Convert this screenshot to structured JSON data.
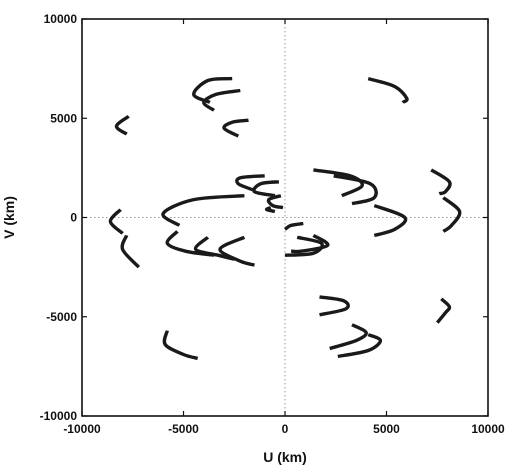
{
  "chart_data": {
    "type": "scatter",
    "title": "",
    "xlabel": "U (km)",
    "ylabel": "V (km)",
    "xlim": [
      -10000,
      10000
    ],
    "ylim": [
      -10000,
      10000
    ],
    "xticks": [
      "-10000",
      "-5000",
      "0",
      "5000",
      "10000"
    ],
    "yticks": [
      "-10000",
      "-5000",
      "0",
      "5000",
      "10000"
    ],
    "zero_lines": true,
    "grid": false,
    "tracks": [
      {
        "points": [
          [
            -2600,
            7000
          ],
          [
            -3800,
            6900
          ],
          [
            -4500,
            6200
          ],
          [
            -3700,
            5800
          ]
        ]
      },
      {
        "points": [
          [
            -2200,
            6400
          ],
          [
            -3400,
            6200
          ],
          [
            -4000,
            5800
          ],
          [
            -3500,
            5400
          ]
        ]
      },
      {
        "points": [
          [
            -1800,
            4900
          ],
          [
            -2600,
            4800
          ],
          [
            -3000,
            4500
          ],
          [
            -2300,
            4100
          ]
        ]
      },
      {
        "points": [
          [
            -7700,
            5100
          ],
          [
            -8300,
            4600
          ],
          [
            -7800,
            4200
          ]
        ]
      },
      {
        "points": [
          [
            4100,
            7000
          ],
          [
            5400,
            6600
          ],
          [
            6000,
            6000
          ],
          [
            5800,
            5800
          ]
        ]
      },
      {
        "points": [
          [
            -1000,
            2100
          ],
          [
            -2200,
            2000
          ],
          [
            -2300,
            1700
          ],
          [
            -1600,
            1400
          ]
        ]
      },
      {
        "points": [
          [
            -300,
            1800
          ],
          [
            -1200,
            1700
          ],
          [
            -1500,
            1300
          ],
          [
            -500,
            1100
          ]
        ]
      },
      {
        "points": [
          [
            -200,
            1100
          ],
          [
            -800,
            900
          ],
          [
            -600,
            600
          ],
          [
            -100,
            500
          ]
        ]
      },
      {
        "points": [
          [
            -700,
            500
          ],
          [
            -900,
            400
          ],
          [
            -500,
            300
          ]
        ]
      },
      {
        "points": [
          [
            1400,
            2400
          ],
          [
            3200,
            2100
          ],
          [
            3800,
            1600
          ],
          [
            2800,
            1100
          ]
        ]
      },
      {
        "points": [
          [
            2400,
            2100
          ],
          [
            4200,
            1700
          ],
          [
            4400,
            1000
          ],
          [
            3300,
            700
          ]
        ]
      },
      {
        "points": [
          [
            -2000,
            1100
          ],
          [
            -4500,
            900
          ],
          [
            -6000,
            200
          ],
          [
            -5200,
            -400
          ]
        ]
      },
      {
        "points": [
          [
            4400,
            600
          ],
          [
            5900,
            0
          ],
          [
            5400,
            -600
          ],
          [
            4400,
            -900
          ]
        ]
      },
      {
        "points": [
          [
            7200,
            2400
          ],
          [
            8100,
            1800
          ],
          [
            7900,
            1300
          ],
          [
            7600,
            1200
          ]
        ]
      },
      {
        "points": [
          [
            7800,
            1000
          ],
          [
            8600,
            300
          ],
          [
            8200,
            -400
          ],
          [
            7800,
            -700
          ]
        ]
      },
      {
        "points": [
          [
            -8100,
            400
          ],
          [
            -8600,
            -200
          ],
          [
            -8000,
            -800
          ]
        ]
      },
      {
        "points": [
          [
            -7800,
            -900
          ],
          [
            -8000,
            -1600
          ],
          [
            -7200,
            -2500
          ]
        ]
      },
      {
        "points": [
          [
            -5300,
            -700
          ],
          [
            -5800,
            -1300
          ],
          [
            -4900,
            -1700
          ],
          [
            -3500,
            -1900
          ]
        ]
      },
      {
        "points": [
          [
            -3800,
            -1000
          ],
          [
            -4400,
            -1600
          ],
          [
            -3300,
            -1900
          ],
          [
            -2500,
            -2100
          ]
        ]
      },
      {
        "points": [
          [
            -2000,
            -1000
          ],
          [
            -3200,
            -1600
          ],
          [
            -2200,
            -2200
          ],
          [
            -1500,
            -2400
          ]
        ]
      },
      {
        "points": [
          [
            900,
            -300
          ],
          [
            300,
            -400
          ],
          [
            0,
            -600
          ]
        ]
      },
      {
        "points": [
          [
            600,
            -1000
          ],
          [
            1800,
            -1300
          ],
          [
            1400,
            -1800
          ],
          [
            0,
            -1900
          ]
        ]
      },
      {
        "points": [
          [
            1400,
            -900
          ],
          [
            2100,
            -1400
          ],
          [
            800,
            -1700
          ],
          [
            300,
            -1700
          ]
        ]
      },
      {
        "points": [
          [
            1700,
            -4000
          ],
          [
            2900,
            -4200
          ],
          [
            3000,
            -4600
          ],
          [
            1700,
            -4900
          ]
        ]
      },
      {
        "points": [
          [
            7700,
            -4100
          ],
          [
            8100,
            -4500
          ],
          [
            7900,
            -4800
          ],
          [
            7500,
            -5300
          ]
        ]
      },
      {
        "points": [
          [
            3300,
            -5400
          ],
          [
            4000,
            -5800
          ],
          [
            3500,
            -6200
          ],
          [
            2200,
            -6600
          ]
        ]
      },
      {
        "points": [
          [
            4100,
            -5900
          ],
          [
            4700,
            -6200
          ],
          [
            4100,
            -6700
          ],
          [
            2600,
            -7000
          ]
        ]
      },
      {
        "points": [
          [
            -5800,
            -5700
          ],
          [
            -5900,
            -6400
          ],
          [
            -5000,
            -6900
          ],
          [
            -4300,
            -7100
          ]
        ]
      }
    ]
  }
}
